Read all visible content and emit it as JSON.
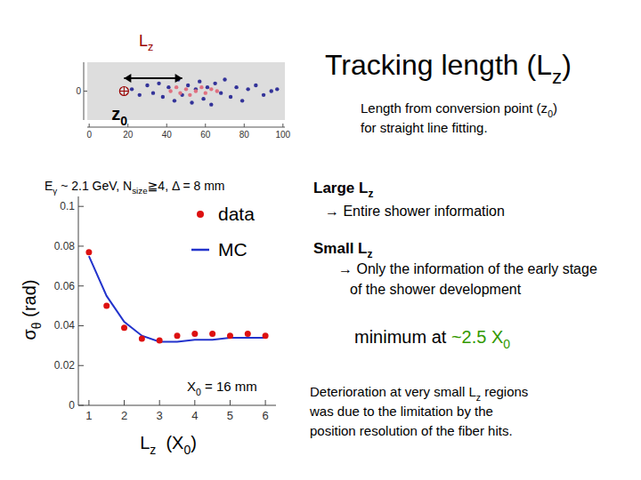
{
  "slide": {
    "title": [
      {
        "text": "Tracking length (L"
      },
      {
        "text": "z",
        "sub": true
      },
      {
        "text": ")"
      }
    ],
    "description": [
      [
        {
          "text": "Length from conversion point (z"
        },
        {
          "text": "0",
          "sub": true
        },
        {
          "text": ")"
        }
      ],
      [
        {
          "text": "for straight line fitting."
        }
      ]
    ],
    "large_lz": {
      "heading": [
        {
          "text": "Large L"
        },
        {
          "text": "z",
          "sub": true
        }
      ],
      "note": [
        [
          {
            "text": "→ Entire shower information"
          }
        ]
      ]
    },
    "small_lz": {
      "heading": [
        {
          "text": "Small L"
        },
        {
          "text": "z",
          "sub": true
        }
      ],
      "note": [
        [
          {
            "text": "→ Only the information of the early stage"
          }
        ],
        [
          {
            "text": "of the shower development"
          }
        ]
      ]
    },
    "minimum": [
      {
        "text": "minimum at "
      },
      {
        "text": "~2.5 X",
        "color": "#339900"
      },
      {
        "text": "0",
        "sub": true,
        "color": "#339900"
      }
    ],
    "deterioration": [
      [
        {
          "text": "Deterioration at very small L"
        },
        {
          "text": "z",
          "sub": true
        },
        {
          "text": " regions"
        }
      ],
      [
        {
          "text": "was due to the limitation by the"
        }
      ],
      [
        {
          "text": "position resolution of the fiber hits."
        }
      ]
    ]
  },
  "chart_data": [
    {
      "type": "scatter",
      "xlim": [
        -1,
        101
      ],
      "xticks": [
        0,
        20,
        40,
        60,
        80,
        100
      ],
      "ylim": [
        -15,
        15
      ],
      "yticks": [
        0
      ],
      "series": [
        {
          "color": "#333399",
          "marker": "dot",
          "x": [
            22,
            26,
            30,
            33,
            36,
            38,
            41,
            44,
            46,
            48,
            51,
            53,
            55,
            57,
            59,
            61,
            63,
            65,
            68,
            70,
            73,
            76,
            79,
            82,
            86,
            90,
            94,
            97
          ],
          "values": [
            1,
            -2,
            3,
            -1,
            4,
            -3,
            2,
            -5,
            6,
            -2,
            3,
            -6,
            1,
            5,
            -4,
            2,
            -7,
            4,
            -1,
            6,
            -3,
            2,
            -5,
            1,
            3,
            -2,
            0,
            1
          ]
        },
        {
          "color": "#e07080",
          "marker": "dot",
          "x": [
            42,
            45,
            47,
            50,
            52,
            55,
            58,
            60,
            63,
            66
          ],
          "values": [
            0,
            2,
            -1,
            1,
            -2,
            0,
            2,
            -1,
            1,
            0
          ]
        }
      ],
      "conversion_point": 18,
      "lz_range": [
        18,
        48
      ],
      "annotations": {
        "lz": [
          {
            "text": "L",
            "color": "#990000"
          },
          {
            "text": "z",
            "sub": true,
            "color": "#990000"
          }
        ],
        "z0": [
          {
            "text": "z"
          },
          {
            "text": "0",
            "sub": true
          }
        ]
      }
    },
    {
      "type": "line",
      "title": [
        {
          "text": "E"
        },
        {
          "text": "γ",
          "sub": true
        },
        {
          "text": " ~ 2.1 GeV, N"
        },
        {
          "text": "size",
          "sub": true
        },
        {
          "text": "≧4, Δ = 8 mm"
        }
      ],
      "x_label": [
        {
          "text": "L"
        },
        {
          "text": "z",
          "sub": true
        },
        {
          "text": "  (X"
        },
        {
          "text": "0",
          "sub": true
        },
        {
          "text": ")"
        }
      ],
      "y_label": [
        {
          "text": "σ"
        },
        {
          "text": "θ",
          "sub": true
        },
        {
          "text": " (rad)"
        }
      ],
      "annotation": [
        {
          "text": "X"
        },
        {
          "text": "0",
          "sub": true
        },
        {
          "text": " = 16 mm"
        }
      ],
      "xlim": [
        0.7,
        6.3
      ],
      "xticks": [
        1,
        2,
        3,
        4,
        5,
        6
      ],
      "ylim": [
        0,
        0.105
      ],
      "yticks": [
        0,
        0.02,
        0.04,
        0.06,
        0.08,
        0.1
      ],
      "legend": "top-right",
      "x": [
        1,
        1.5,
        2,
        2.5,
        3,
        3.5,
        4,
        4.5,
        5,
        5.5,
        6
      ],
      "series": [
        {
          "name": "data",
          "type": "scatter",
          "marker": "circle",
          "color": "#dd1111",
          "values": [
            0.077,
            0.05,
            0.039,
            0.0335,
            0.0326,
            0.035,
            0.036,
            0.036,
            0.035,
            0.036,
            0.035
          ]
        },
        {
          "name": "MC",
          "type": "line",
          "line_style": "solid",
          "color": "#2233cc",
          "values": [
            0.075,
            0.055,
            0.042,
            0.035,
            0.032,
            0.032,
            0.033,
            0.033,
            0.034,
            0.034,
            0.034
          ]
        }
      ]
    }
  ]
}
